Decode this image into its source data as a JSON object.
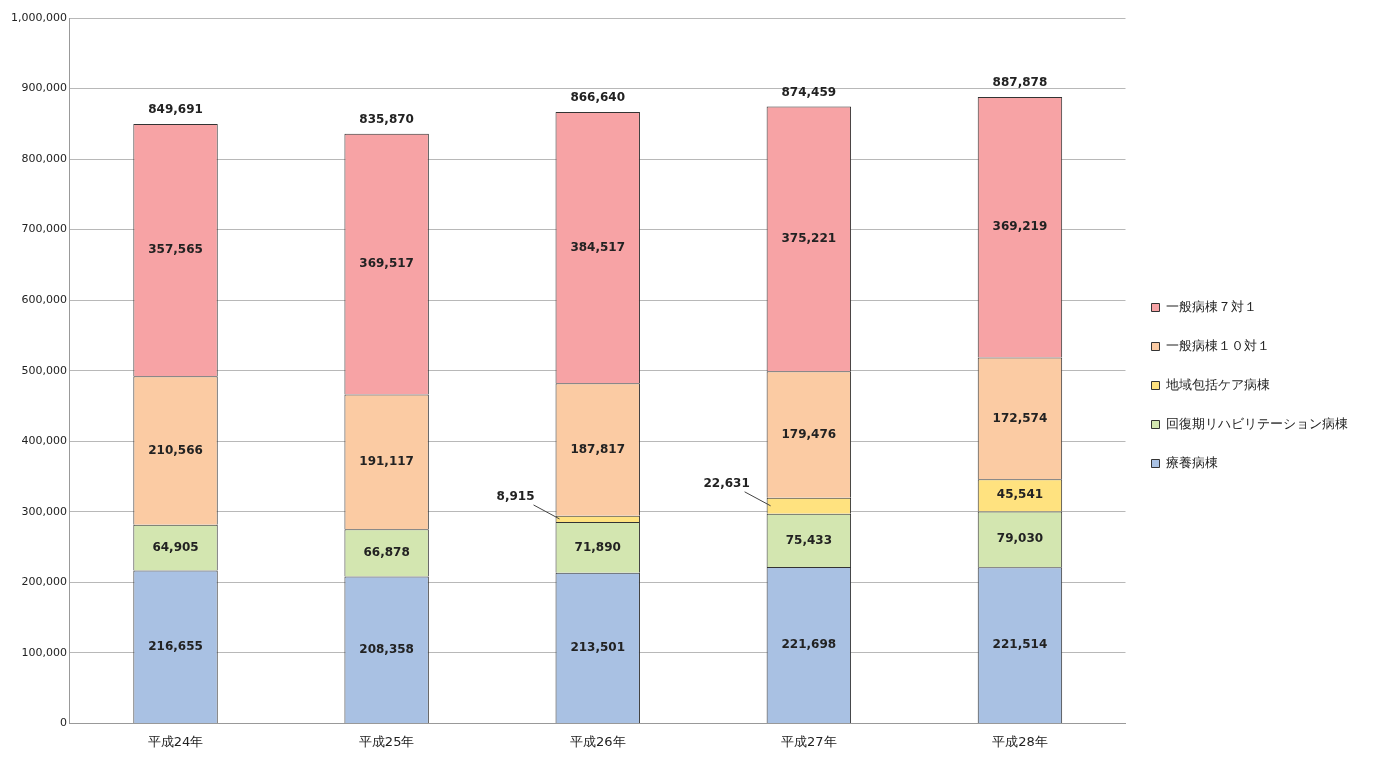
{
  "chart_data": {
    "type": "bar",
    "stacked": true,
    "categories": [
      "平成24年",
      "平成25年",
      "平成26年",
      "平成27年",
      "平成28年"
    ],
    "series": [
      {
        "name": "療養病棟",
        "color": "#a9c1e3",
        "values": [
          216655,
          208358,
          213501,
          221698,
          221514
        ],
        "value_labels": [
          "216,655",
          "208,358",
          "213,501",
          "221,698",
          "221,514"
        ]
      },
      {
        "name": "回復期リハビリテーション病棟",
        "color": "#d3e6b0",
        "values": [
          64905,
          66878,
          71890,
          75433,
          79030
        ],
        "value_labels": [
          "64,905",
          "66,878",
          "71,890",
          "75,433",
          "79,030"
        ]
      },
      {
        "name": "地域包括ケア病棟",
        "color": "#ffe27f",
        "values": [
          null,
          null,
          8915,
          22631,
          45541
        ],
        "value_labels": [
          null,
          null,
          "8,915",
          "22,631",
          "45,541"
        ]
      },
      {
        "name": "一般病棟１０対１",
        "color": "#fbcba3",
        "values": [
          210566,
          191117,
          187817,
          179476,
          172574
        ],
        "value_labels": [
          "210,566",
          "191,117",
          "187,817",
          "179,476",
          "172,574"
        ]
      },
      {
        "name": "一般病棟７対１",
        "color": "#f7a3a5",
        "values": [
          357565,
          369517,
          384517,
          375221,
          369219
        ],
        "value_labels": [
          "357,565",
          "369,517",
          "384,517",
          "375,221",
          "369,219"
        ]
      }
    ],
    "totals": [
      "849,691",
      "835,870",
      "866,640",
      "874,459",
      "887,878"
    ],
    "ylim": [
      0,
      1000000
    ],
    "yticks": [
      0,
      {
        "value": 100000,
        "label": "100,000"
      },
      {
        "value": 200000,
        "label": "200,000"
      },
      {
        "value": 300000,
        "label": "300,000"
      },
      {
        "value": 400000,
        "label": "400,000"
      },
      {
        "value": 500000,
        "label": "500,000"
      },
      {
        "value": 600000,
        "label": "600,000"
      },
      {
        "value": 700000,
        "label": "700,000"
      },
      {
        "value": 800000,
        "label": "800,000"
      },
      {
        "value": 900000,
        "label": "900,000"
      },
      {
        "value": 1000000,
        "label": "1,000,000"
      }
    ],
    "grid": "y",
    "legend": "right"
  }
}
